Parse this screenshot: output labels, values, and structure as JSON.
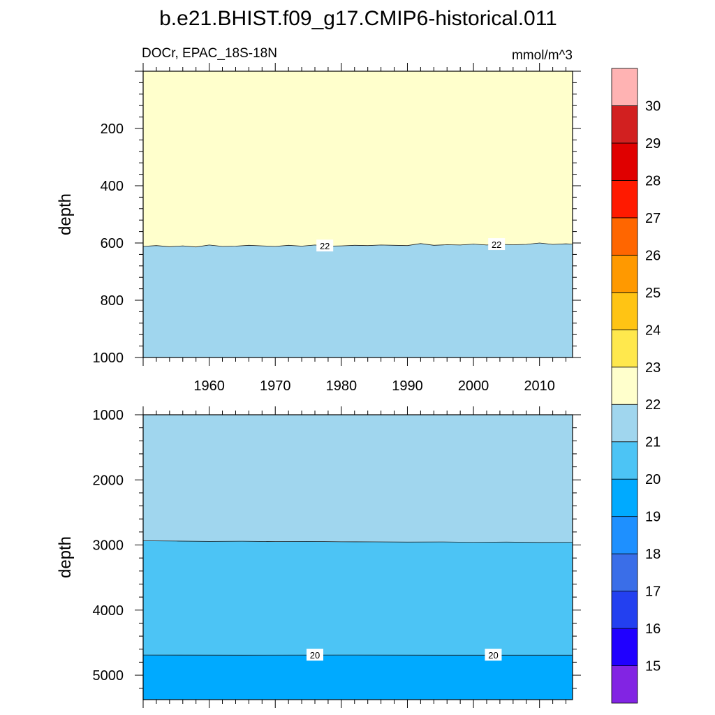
{
  "title": "b.e21.BHIST.f09_g17.CMIP6-historical.011",
  "subtitle_left": "DOCr, EPAC_18S-18N",
  "subtitle_right": "mmol/m^3",
  "colorbar": {
    "levels": [
      15,
      16,
      17,
      18,
      19,
      20,
      21,
      22,
      23,
      24,
      25,
      26,
      27,
      28,
      29,
      30
    ],
    "colors": [
      "#8224e3",
      "#2000ff",
      "#2340f0",
      "#3a6ee8",
      "#1e90ff",
      "#00aaff",
      "#4cc4f5",
      "#a0d6ee",
      "#ffffcc",
      "#ffe84d",
      "#ffc414",
      "#ff9900",
      "#ff6600",
      "#ff1a00",
      "#e00000",
      "#d22020",
      "#ffb3b3"
    ]
  },
  "chart_data": [
    {
      "type": "heatmap",
      "panel": "upper",
      "xlabel": "",
      "ylabel": "depth",
      "xlim": [
        1950,
        2015
      ],
      "ylim": [
        1000,
        0
      ],
      "x_ticks": [
        1960,
        1970,
        1980,
        1990,
        2000,
        2010
      ],
      "y_ticks": [
        200,
        400,
        600,
        800,
        1000
      ],
      "regions": [
        {
          "range": "22-23",
          "color": "#ffffcc"
        },
        {
          "range": "21-22",
          "color": "#a0d6ee"
        }
      ],
      "contours": [
        {
          "level": 22,
          "x": [
            1950,
            1952,
            1954,
            1956,
            1958,
            1960,
            1962,
            1964,
            1966,
            1968,
            1970,
            1972,
            1974,
            1976,
            1978,
            1980,
            1982,
            1984,
            1986,
            1988,
            1990,
            1992,
            1994,
            1996,
            1998,
            2000,
            2002,
            2004,
            2006,
            2008,
            2010,
            2012,
            2014,
            2015
          ],
          "y": [
            612,
            609,
            613,
            610,
            614,
            607,
            612,
            611,
            608,
            610,
            612,
            608,
            611,
            607,
            611,
            610,
            608,
            609,
            607,
            608,
            609,
            602,
            608,
            606,
            607,
            604,
            607,
            605,
            606,
            605,
            600,
            605,
            603,
            604
          ]
        }
      ],
      "contour_labels": [
        {
          "text": "22",
          "x": 1977.5,
          "y": 610
        },
        {
          "text": "22",
          "x": 2003.5,
          "y": 605
        }
      ]
    },
    {
      "type": "heatmap",
      "panel": "lower",
      "xlabel": "",
      "ylabel": "depth",
      "xlim": [
        1950,
        2015
      ],
      "ylim": [
        5375,
        1000
      ],
      "x_ticks": [
        1960,
        1970,
        1980,
        1990,
        2000,
        2010
      ],
      "y_ticks": [
        1000,
        2000,
        3000,
        4000,
        5000
      ],
      "regions": [
        {
          "range": "21-22",
          "color": "#a0d6ee"
        },
        {
          "range": "20-21",
          "color": "#4cc4f5"
        },
        {
          "range": "19-20",
          "color": "#00aaff"
        }
      ],
      "contours": [
        {
          "level": 21,
          "x": [
            1950,
            1955,
            1960,
            1965,
            1970,
            1975,
            1980,
            1985,
            1990,
            1995,
            2000,
            2005,
            2010,
            2015
          ],
          "y": [
            2935,
            2940,
            2945,
            2942,
            2947,
            2945,
            2950,
            2952,
            2955,
            2953,
            2958,
            2955,
            2960,
            2958
          ]
        },
        {
          "level": 20,
          "x": [
            1950,
            1965,
            1980,
            1995,
            2015
          ],
          "y": [
            4690,
            4692,
            4690,
            4692,
            4692
          ]
        }
      ],
      "contour_labels": [
        {
          "text": "20",
          "x": 1976,
          "y": 4690
        },
        {
          "text": "20",
          "x": 2003,
          "y": 4690
        }
      ]
    }
  ]
}
